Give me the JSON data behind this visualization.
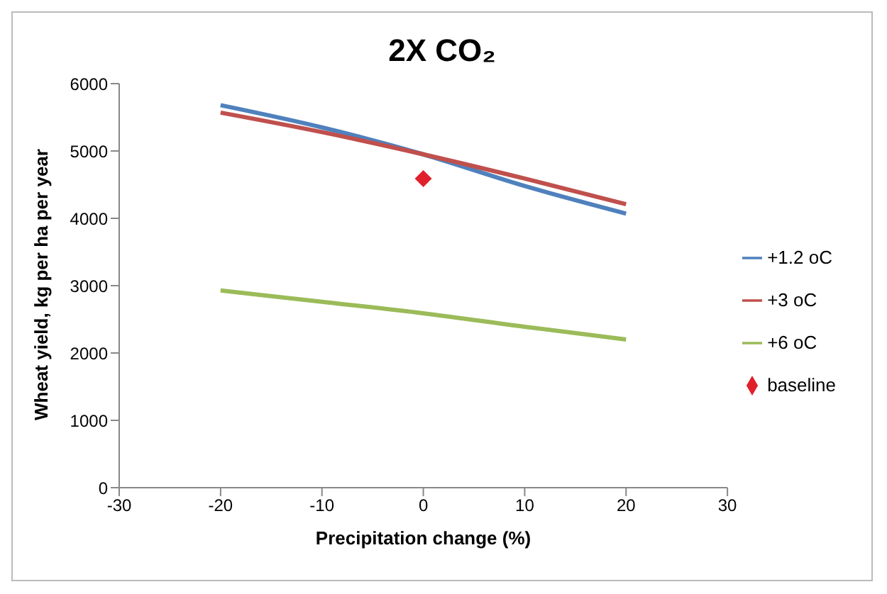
{
  "chart_data": {
    "type": "line",
    "title": "2X CO₂",
    "xlabel": "Precipitation change (%)",
    "ylabel": "Wheat yield, kg per ha per year",
    "x": [
      -20,
      -10,
      0,
      10,
      20
    ],
    "series": [
      {
        "name": "+1.2 oC",
        "color": "#4f81bd",
        "values": [
          5680,
          5350,
          4950,
          4480,
          4070
        ]
      },
      {
        "name": "+3 oC",
        "color": "#c0504d",
        "values": [
          5570,
          5280,
          4950,
          4590,
          4210
        ]
      },
      {
        "name": "+6 oC",
        "color": "#9bbb59",
        "values": [
          2930,
          2760,
          2590,
          2390,
          2200
        ]
      },
      {
        "name": "baseline",
        "color": "#e0202a",
        "x": [
          0
        ],
        "values": [
          4590
        ],
        "marker": "diamond"
      }
    ],
    "xlim": [
      -30,
      30
    ],
    "xticks": [
      -30,
      -20,
      -10,
      0,
      10,
      20,
      30
    ],
    "ylim": [
      0,
      6000
    ],
    "yticks": [
      0,
      1000,
      2000,
      3000,
      4000,
      5000,
      6000
    ],
    "legend": "right",
    "marker": "none"
  }
}
